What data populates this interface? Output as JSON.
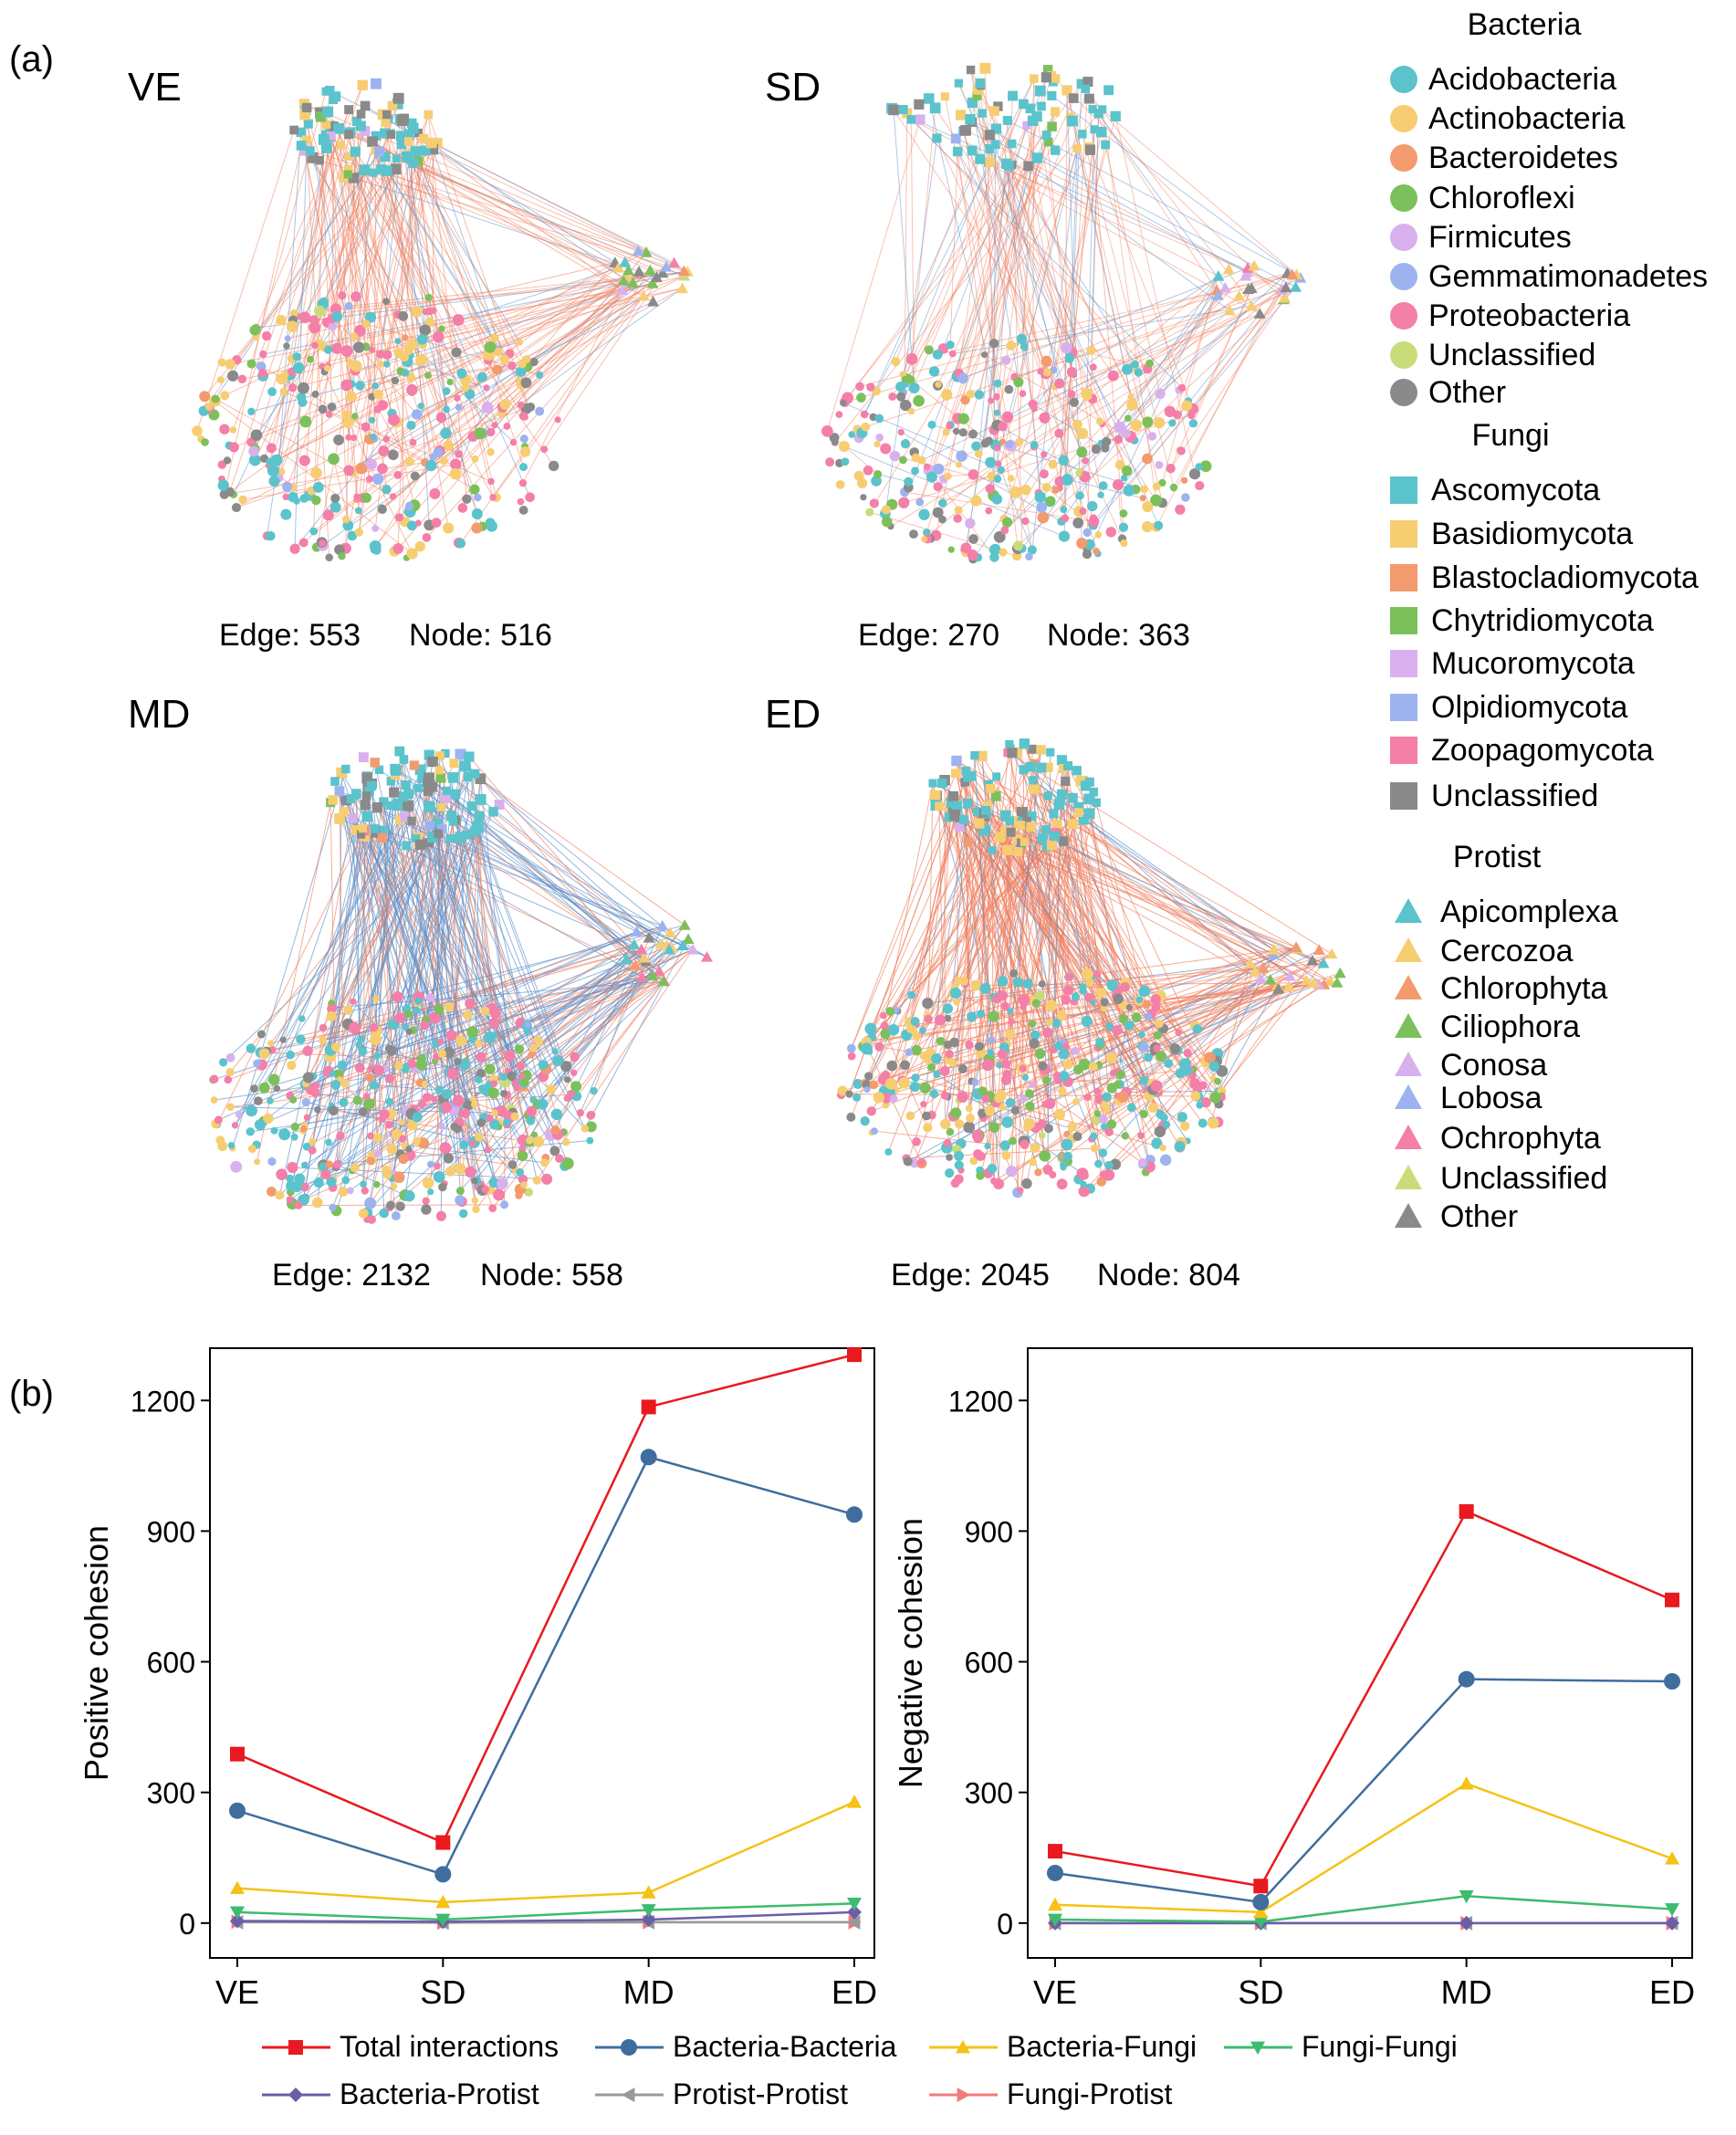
{
  "panel_labels": {
    "a": "(a)",
    "b": "(b)"
  },
  "networks": [
    {
      "label": "VE",
      "edge_text": "Edge: 553",
      "node_text": "Node: 516",
      "edges": 553,
      "nodes": 516,
      "link_mix": {
        "positive": 0.85,
        "negative": 0.15
      },
      "density": 0.55
    },
    {
      "label": "SD",
      "edge_text": "Edge: 270",
      "node_text": "Node: 363",
      "edges": 270,
      "nodes": 363,
      "link_mix": {
        "positive": 0.7,
        "negative": 0.3
      },
      "density": 0.4
    },
    {
      "label": "MD",
      "edge_text": "Edge: 2132",
      "node_text": "Node: 558",
      "edges": 2132,
      "nodes": 558,
      "link_mix": {
        "positive": 0.35,
        "negative": 0.65
      },
      "density": 0.95
    },
    {
      "label": "ED",
      "edge_text": "Edge: 2045",
      "node_text": "Node: 804",
      "edges": 2045,
      "nodes": 804,
      "link_mix": {
        "positive": 0.85,
        "negative": 0.15
      },
      "density": 1.0
    }
  ],
  "edge_colors": {
    "positive": "#f08060",
    "negative": "#5b8fc9"
  },
  "legend": {
    "bacteria": {
      "title": "Bacteria",
      "shape": "circle",
      "items": [
        {
          "label": "Acidobacteria",
          "color": "#5bc3cc"
        },
        {
          "label": "Actinobacteria",
          "color": "#f7cd72"
        },
        {
          "label": "Bacteroidetes",
          "color": "#f39a6e"
        },
        {
          "label": "Chloroflexi",
          "color": "#7cc05c"
        },
        {
          "label": "Firmicutes",
          "color": "#d9b0ee"
        },
        {
          "label": "Gemmatimonadetes",
          "color": "#9db3f0"
        },
        {
          "label": "Proteobacteria",
          "color": "#f47fa9"
        },
        {
          "label": "Unclassified",
          "color": "#c8dd7a"
        },
        {
          "label": "Other",
          "color": "#8a8a8a"
        }
      ]
    },
    "fungi": {
      "title": "Fungi",
      "shape": "square",
      "items": [
        {
          "label": "Ascomycota",
          "color": "#5bc3cc"
        },
        {
          "label": "Basidiomycota",
          "color": "#f7cd72"
        },
        {
          "label": "Blastocladiomycota",
          "color": "#f39a6e"
        },
        {
          "label": "Chytridiomycota",
          "color": "#7cc05c"
        },
        {
          "label": "Mucoromycota",
          "color": "#d9b0ee"
        },
        {
          "label": "Olpidiomycota",
          "color": "#9db3f0"
        },
        {
          "label": "Zoopagomycota",
          "color": "#f47fa9"
        },
        {
          "label": "Unclassified",
          "color": "#8a8a8a"
        }
      ]
    },
    "protist": {
      "title": "Protist",
      "shape": "triangle",
      "items": [
        {
          "label": "Apicomplexa",
          "color": "#5bc3cc"
        },
        {
          "label": "Cercozoa",
          "color": "#f7cd72"
        },
        {
          "label": "Chlorophyta",
          "color": "#f39a6e"
        },
        {
          "label": "Ciliophora",
          "color": "#7cc05c"
        },
        {
          "label": "Conosa",
          "color": "#d9b0ee"
        },
        {
          "label": "Lobosa",
          "color": "#9db3f0"
        },
        {
          "label": "Ochrophyta",
          "color": "#f47fa9"
        },
        {
          "label": "Unclassified",
          "color": "#c8dd7a"
        },
        {
          "label": "Other",
          "color": "#8a8a8a"
        }
      ]
    }
  },
  "chart_data": [
    {
      "type": "line",
      "title": "",
      "xlabel": "",
      "ylabel": "Positive cohesion",
      "categories": [
        "VE",
        "SD",
        "MD",
        "ED"
      ],
      "ylim": [
        -80,
        1320
      ],
      "yticks": [
        0,
        300,
        600,
        900,
        1200
      ],
      "grid": false,
      "series": [
        {
          "name": "Total interactions",
          "color": "#e8191f",
          "marker": "square",
          "values": [
            388,
            185,
            1185,
            1305
          ]
        },
        {
          "name": "Bacteria-Bacteria",
          "color": "#3f6d9e",
          "marker": "circle",
          "values": [
            258,
            112,
            1070,
            938
          ]
        },
        {
          "name": "Bacteria-Fungi",
          "color": "#f5c215",
          "marker": "triangle-up",
          "values": [
            80,
            48,
            70,
            278
          ]
        },
        {
          "name": "Fungi-Fungi",
          "color": "#3dbb6e",
          "marker": "triangle-down",
          "values": [
            25,
            8,
            30,
            45
          ]
        },
        {
          "name": "Bacteria-Protist",
          "color": "#6b5ea8",
          "marker": "diamond",
          "values": [
            5,
            3,
            8,
            25
          ]
        },
        {
          "name": "Protist-Protist",
          "color": "#999999",
          "marker": "triangle-left",
          "values": [
            2,
            1,
            2,
            2
          ]
        },
        {
          "name": "Fungi-Protist",
          "color": "#f27a7a",
          "marker": "triangle-right",
          "values": [
            3,
            1,
            2,
            2
          ]
        }
      ]
    },
    {
      "type": "line",
      "title": "",
      "xlabel": "",
      "ylabel": "Negative cohesion",
      "categories": [
        "VE",
        "SD",
        "MD",
        "ED"
      ],
      "ylim": [
        -80,
        1320
      ],
      "yticks": [
        0,
        300,
        600,
        900,
        1200
      ],
      "grid": false,
      "series": [
        {
          "name": "Total interactions",
          "color": "#e8191f",
          "marker": "square",
          "values": [
            165,
            85,
            945,
            742
          ]
        },
        {
          "name": "Bacteria-Bacteria",
          "color": "#3f6d9e",
          "marker": "circle",
          "values": [
            115,
            48,
            560,
            555
          ]
        },
        {
          "name": "Bacteria-Fungi",
          "color": "#f5c215",
          "marker": "triangle-up",
          "values": [
            42,
            25,
            320,
            148
          ]
        },
        {
          "name": "Fungi-Fungi",
          "color": "#3dbb6e",
          "marker": "triangle-down",
          "values": [
            8,
            3,
            62,
            32
          ]
        },
        {
          "name": "Bacteria-Protist",
          "color": "#6b5ea8",
          "marker": "diamond",
          "values": [
            0,
            0,
            0,
            0
          ]
        },
        {
          "name": "Protist-Protist",
          "color": "#999999",
          "marker": "triangle-left",
          "values": [
            0,
            0,
            0,
            0
          ]
        },
        {
          "name": "Fungi-Protist",
          "color": "#f27a7a",
          "marker": "triangle-right",
          "values": [
            0,
            0,
            0,
            0
          ]
        }
      ]
    }
  ],
  "line_legend": [
    "Total interactions",
    "Bacteria-Bacteria",
    "Bacteria-Fungi",
    "Fungi-Fungi",
    "Bacteria-Protist",
    "Protist-Protist",
    "Fungi-Protist"
  ]
}
